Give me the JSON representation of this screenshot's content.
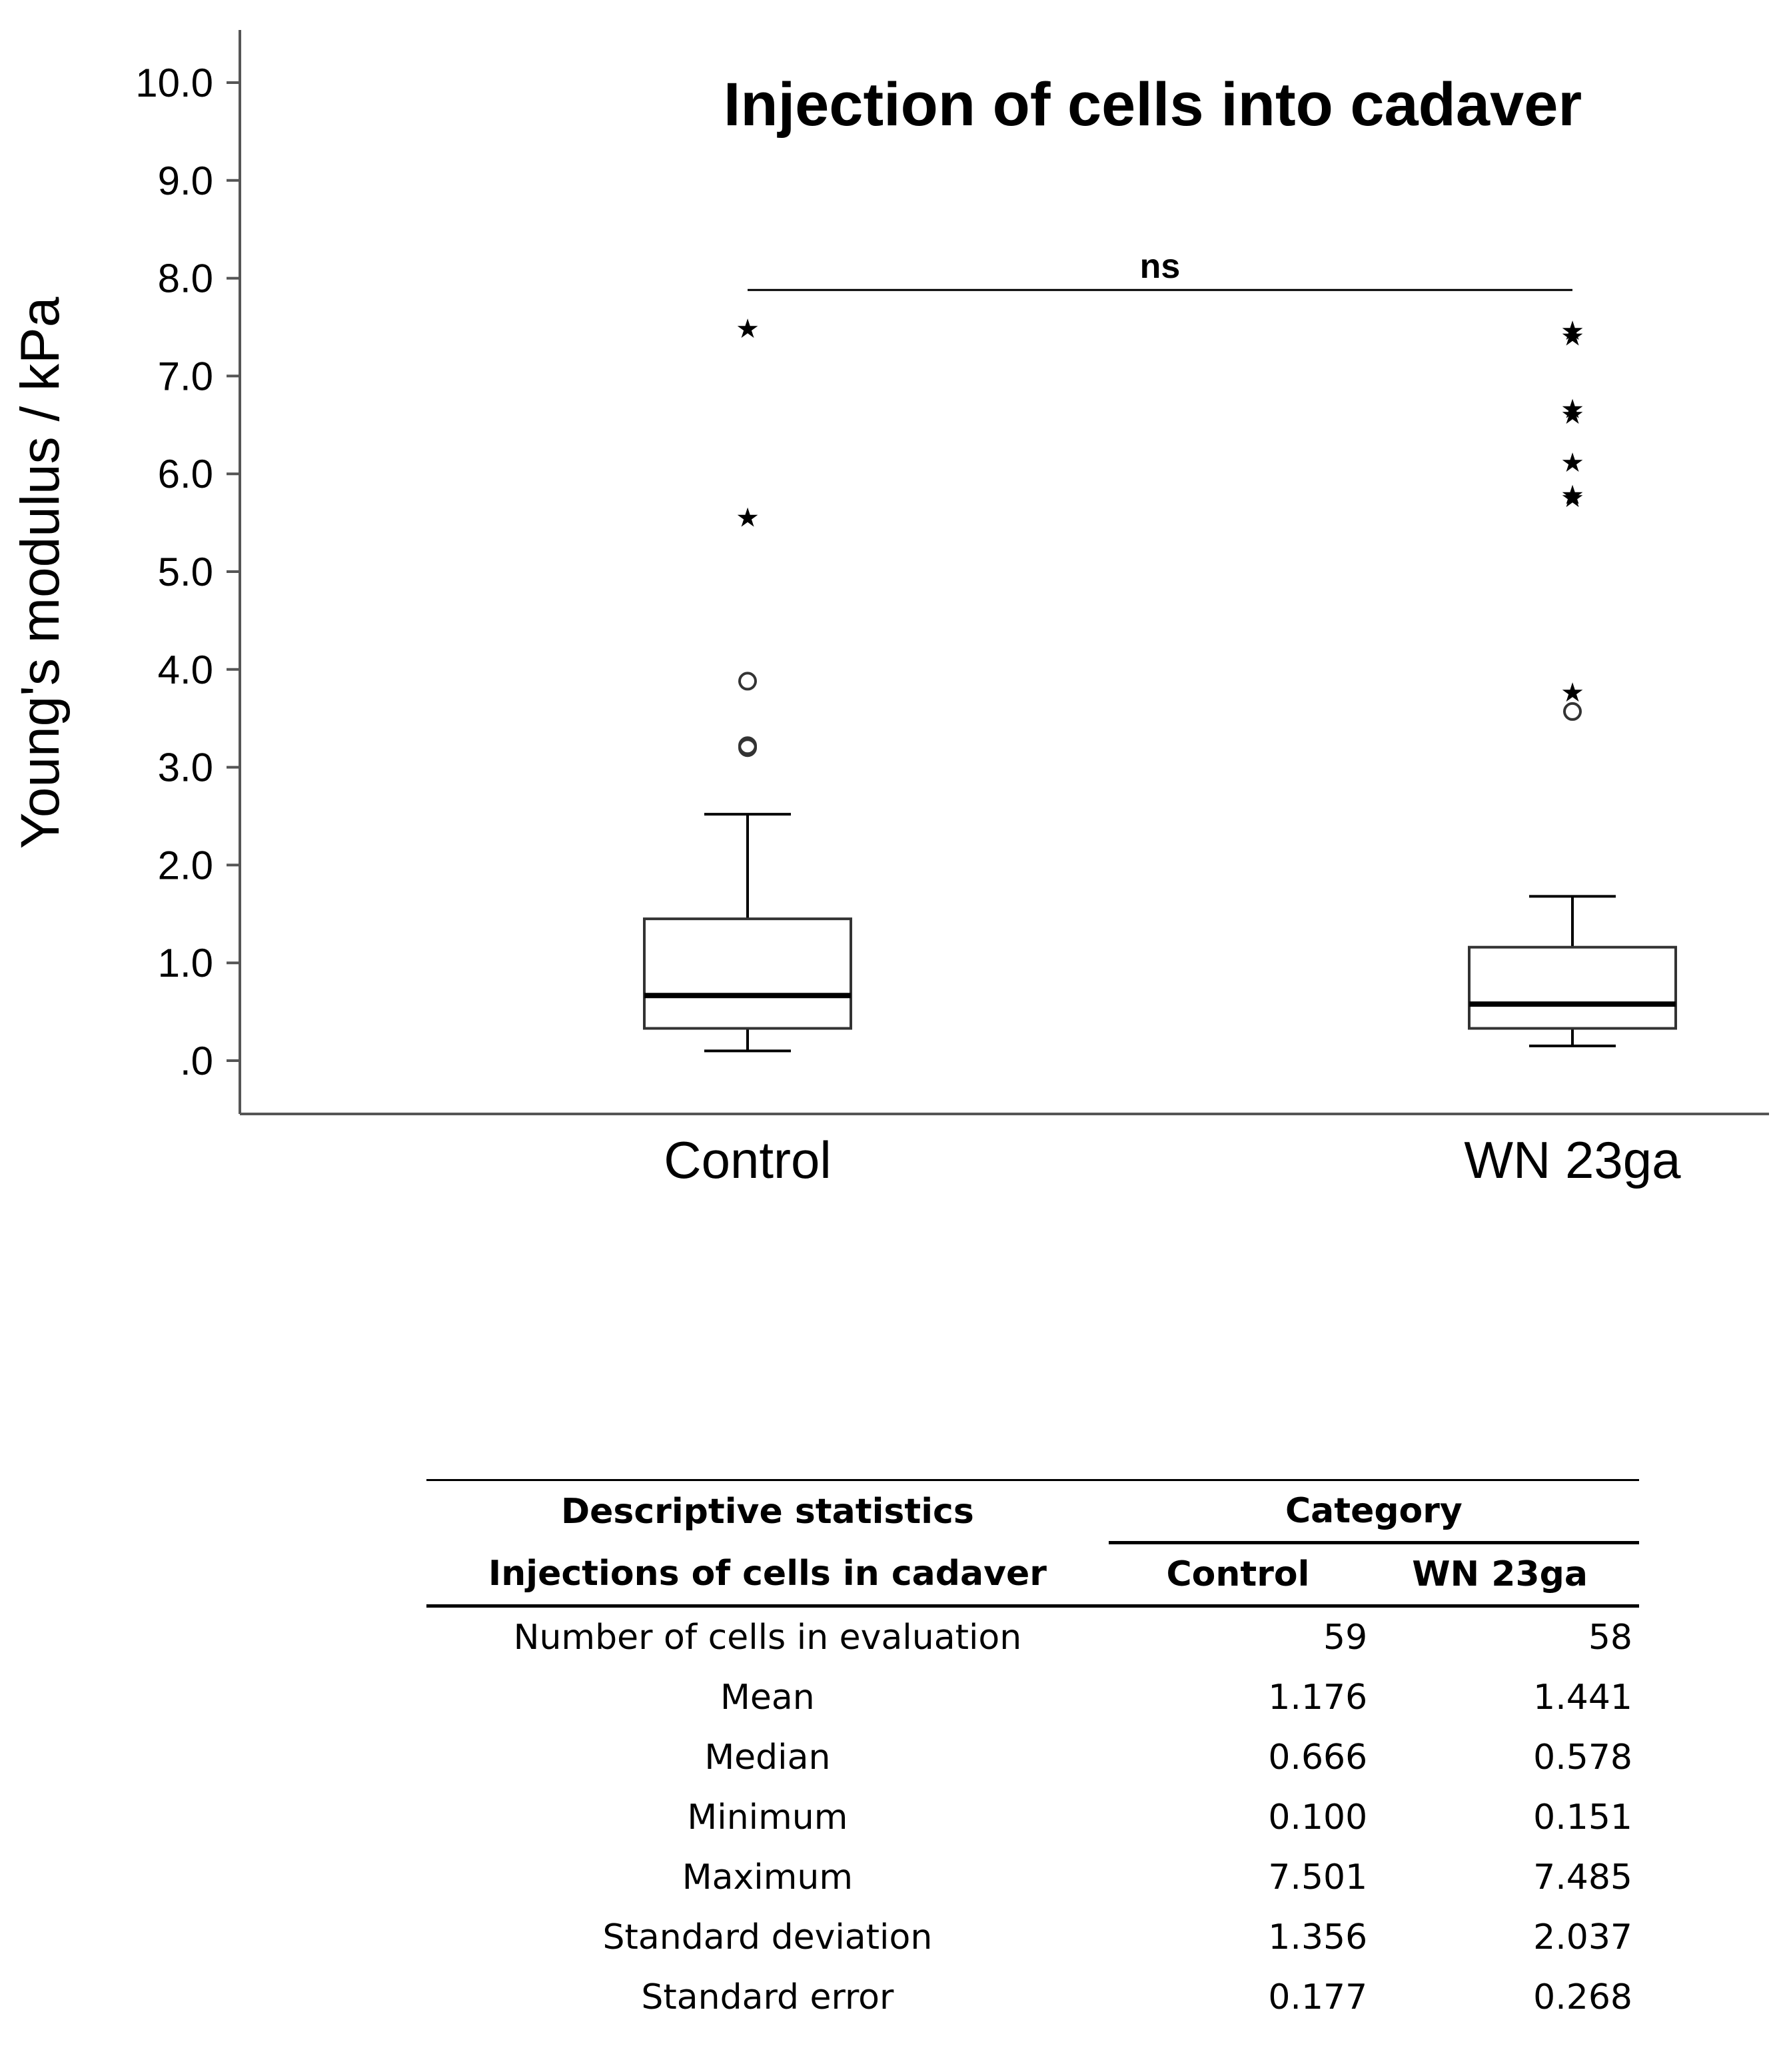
{
  "chart_data": {
    "type": "box",
    "title": "Injection of cells into cadaver",
    "ylabel": "Young's modulus / kPa",
    "xlabel": "",
    "ylim": [
      0,
      10.5
    ],
    "yticks": [
      {
        "value": 0,
        "label": ".0"
      },
      {
        "value": 1,
        "label": "1.0"
      },
      {
        "value": 2,
        "label": "2.0"
      },
      {
        "value": 3,
        "label": "3.0"
      },
      {
        "value": 4,
        "label": "4.0"
      },
      {
        "value": 5,
        "label": "5.0"
      },
      {
        "value": 6,
        "label": "6.0"
      },
      {
        "value": 7,
        "label": "7.0"
      },
      {
        "value": 8,
        "label": "8.0"
      },
      {
        "value": 9,
        "label": "9.0"
      },
      {
        "value": 10,
        "label": "10.0"
      }
    ],
    "categories": [
      "Control",
      "WN 23ga"
    ],
    "boxes": [
      {
        "category": "Control",
        "whisker_low": 0.1,
        "q1": 0.33,
        "median": 0.666,
        "q3": 1.45,
        "whisker_high": 2.52,
        "outliers_circle": [
          3.88,
          3.2,
          3.22
        ],
        "outliers_extreme": [
          7.5,
          5.57
        ]
      },
      {
        "category": "WN 23ga",
        "whisker_low": 0.151,
        "q1": 0.33,
        "median": 0.578,
        "q3": 1.16,
        "whisker_high": 1.68,
        "outliers_circle": [
          3.57
        ],
        "outliers_extreme": [
          7.48,
          7.42,
          6.68,
          6.62,
          6.13,
          5.8,
          5.77,
          3.78
        ]
      }
    ],
    "significance": {
      "label": "ns",
      "y": 7.88
    }
  },
  "table": {
    "title_line1": "Descriptive statistics",
    "title_line2": "Injections of cells in cadaver",
    "category_header": "Category",
    "columns": [
      "Control",
      "WN 23ga"
    ],
    "rows": [
      {
        "label": "Number of cells in evaluation",
        "control": "59",
        "wn": "58"
      },
      {
        "label": "Mean",
        "control": "1.176",
        "wn": "1.441"
      },
      {
        "label": "Median",
        "control": "0.666",
        "wn": "0.578"
      },
      {
        "label": "Minimum",
        "control": "0.100",
        "wn": "0.151"
      },
      {
        "label": "Maximum",
        "control": "7.501",
        "wn": "7.485"
      },
      {
        "label": "Standard deviation",
        "control": "1.356",
        "wn": "2.037"
      },
      {
        "label": "Standard error",
        "control": "0.177",
        "wn": "0.268"
      }
    ]
  }
}
